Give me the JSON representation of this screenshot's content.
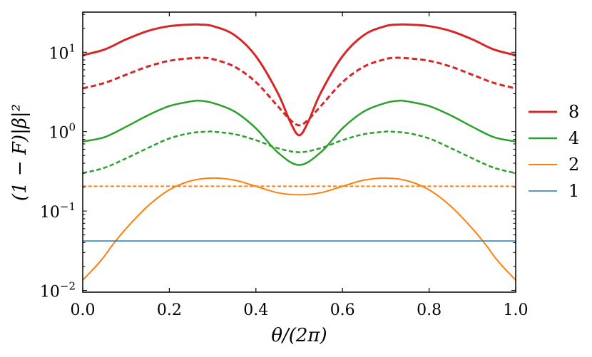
{
  "chart_data": {
    "type": "line",
    "xlabel": "θ/(2π)",
    "ylabel": "(1 − F)|β|²",
    "xlim": [
      0,
      1
    ],
    "ylim": [
      0.0095,
      32
    ],
    "yscale": "log",
    "grid": false,
    "legend_placement": "outside-right",
    "x_ticks": [
      "0.0",
      "0.2",
      "0.4",
      "0.6",
      "0.8",
      "1.0"
    ],
    "y_ticks": [
      {
        "base": "10",
        "exp": "1",
        "value": 10
      },
      {
        "base": "10",
        "exp": "0",
        "value": 1
      },
      {
        "base": "10",
        "exp": "−1",
        "value": 0.1
      },
      {
        "base": "10",
        "exp": "−2",
        "value": 0.01
      }
    ],
    "legend": [
      {
        "label": "8",
        "color": "#d62728",
        "width": 3
      },
      {
        "label": "4",
        "color": "#2ca02c",
        "width": 2.5
      },
      {
        "label": "2",
        "color": "#ff7f0e",
        "width": 2
      },
      {
        "label": "1",
        "color": "#1f77b4",
        "width": 1.5
      }
    ],
    "series": [
      {
        "group": "8",
        "style": "solid",
        "color": "#d62728",
        "width": 3,
        "x": [
          0,
          0.05,
          0.1,
          0.15,
          0.2,
          0.25,
          0.27,
          0.3,
          0.35,
          0.4,
          0.45,
          0.48,
          0.5,
          0.52,
          0.55,
          0.6,
          0.65,
          0.7,
          0.73,
          0.75,
          0.8,
          0.85,
          0.9,
          0.95,
          1.0
        ],
        "y": [
          9.2,
          10.8,
          14.5,
          18.5,
          21.3,
          22.3,
          22.3,
          21.4,
          16.5,
          8.9,
          3.1,
          1.3,
          0.9,
          1.3,
          3.1,
          8.9,
          16.5,
          21.4,
          22.3,
          22.3,
          21.3,
          18.5,
          14.5,
          10.8,
          9.2
        ]
      },
      {
        "group": "8",
        "style": "dashed",
        "color": "#d62728",
        "width": 3,
        "x": [
          0,
          0.05,
          0.1,
          0.15,
          0.2,
          0.25,
          0.28,
          0.3,
          0.35,
          0.4,
          0.45,
          0.48,
          0.5,
          0.52,
          0.55,
          0.6,
          0.65,
          0.7,
          0.72,
          0.75,
          0.8,
          0.85,
          0.9,
          0.95,
          1.0
        ],
        "y": [
          3.5,
          4.1,
          5.2,
          6.6,
          7.8,
          8.4,
          8.5,
          8.2,
          6.6,
          4.2,
          2.1,
          1.4,
          1.2,
          1.4,
          2.1,
          4.2,
          6.6,
          8.2,
          8.5,
          8.4,
          7.8,
          6.6,
          5.2,
          4.1,
          3.5
        ]
      },
      {
        "group": "4",
        "style": "solid",
        "color": "#2ca02c",
        "width": 2.5,
        "x": [
          0,
          0.05,
          0.1,
          0.15,
          0.2,
          0.25,
          0.27,
          0.3,
          0.35,
          0.4,
          0.45,
          0.5,
          0.55,
          0.6,
          0.65,
          0.7,
          0.73,
          0.75,
          0.8,
          0.85,
          0.9,
          0.95,
          1.0
        ],
        "y": [
          0.75,
          0.85,
          1.15,
          1.6,
          2.1,
          2.4,
          2.45,
          2.3,
          1.8,
          1.1,
          0.55,
          0.38,
          0.55,
          1.1,
          1.8,
          2.3,
          2.45,
          2.4,
          2.1,
          1.6,
          1.15,
          0.85,
          0.75
        ]
      },
      {
        "group": "4",
        "style": "dashed",
        "color": "#2ca02c",
        "width": 2.5,
        "x": [
          0,
          0.05,
          0.1,
          0.15,
          0.2,
          0.25,
          0.29,
          0.3,
          0.35,
          0.4,
          0.45,
          0.5,
          0.55,
          0.6,
          0.65,
          0.7,
          0.71,
          0.75,
          0.8,
          0.85,
          0.9,
          0.95,
          1.0
        ],
        "y": [
          0.3,
          0.35,
          0.46,
          0.62,
          0.82,
          0.96,
          1.0,
          1.0,
          0.93,
          0.78,
          0.62,
          0.55,
          0.62,
          0.78,
          0.93,
          1.0,
          1.0,
          0.96,
          0.82,
          0.62,
          0.46,
          0.35,
          0.3
        ]
      },
      {
        "group": "2",
        "style": "solid",
        "color": "#ff7f0e",
        "width": 2,
        "x": [
          0,
          0.03,
          0.05,
          0.07,
          0.1,
          0.15,
          0.2,
          0.25,
          0.3,
          0.35,
          0.4,
          0.45,
          0.5,
          0.55,
          0.6,
          0.65,
          0.7,
          0.75,
          0.8,
          0.85,
          0.9,
          0.93,
          0.95,
          0.97,
          1.0
        ],
        "y": [
          0.0135,
          0.02,
          0.027,
          0.038,
          0.06,
          0.115,
          0.185,
          0.24,
          0.26,
          0.245,
          0.205,
          0.17,
          0.16,
          0.17,
          0.205,
          0.245,
          0.26,
          0.24,
          0.185,
          0.115,
          0.06,
          0.038,
          0.027,
          0.02,
          0.0135
        ]
      },
      {
        "group": "2",
        "style": "dashed",
        "color": "#ff7f0e",
        "width": 2,
        "x": [
          0,
          1.0
        ],
        "y": [
          0.205,
          0.205
        ]
      },
      {
        "group": "1",
        "style": "solid",
        "color": "#1f77b4",
        "width": 1.5,
        "x": [
          0,
          1.0
        ],
        "y": [
          0.042,
          0.042
        ]
      }
    ]
  }
}
